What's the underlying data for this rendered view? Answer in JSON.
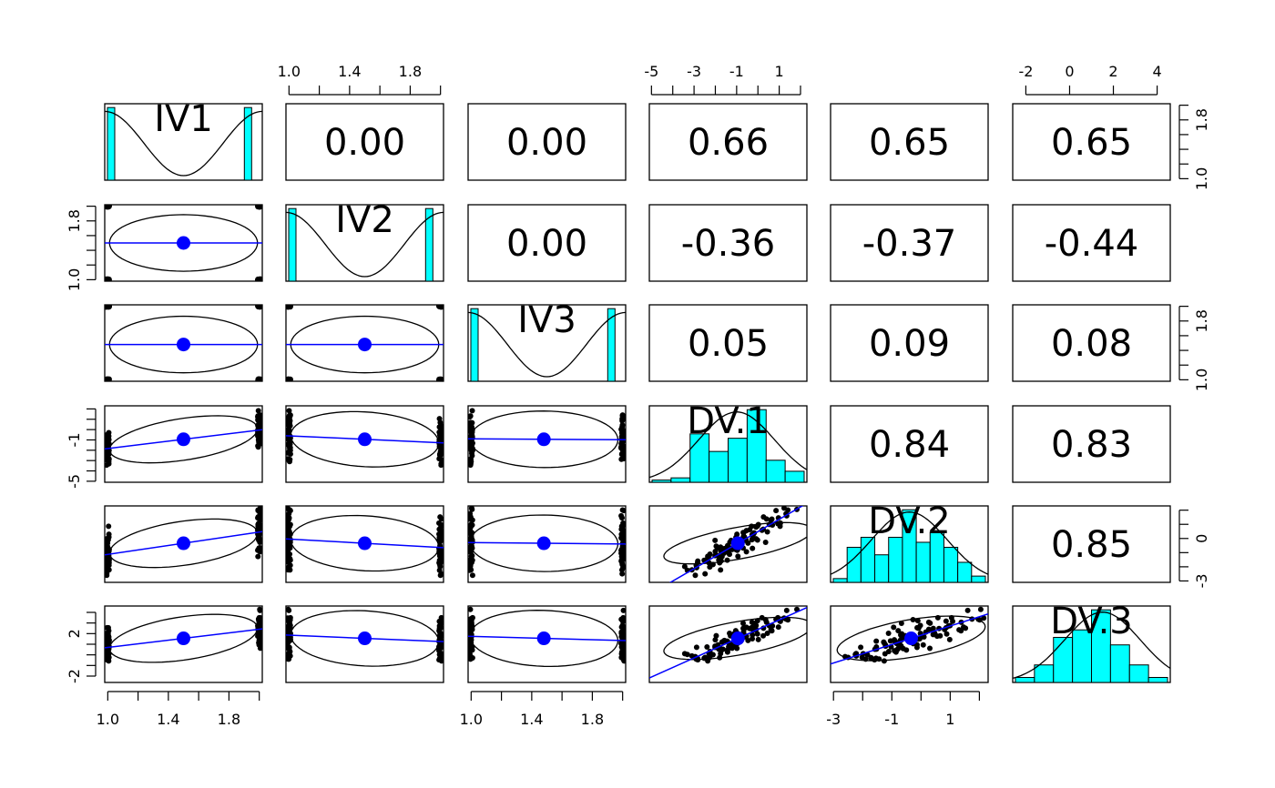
{
  "chart_data": {
    "type": "scatter_matrix",
    "variables": [
      "IV1",
      "IV2",
      "IV3",
      "DV.1",
      "DV.2",
      "DV.3"
    ],
    "correlations": [
      [
        "",
        "0.00",
        "0.00",
        "0.66",
        "0.65",
        "0.65"
      ],
      [
        "",
        "",
        "0.00",
        "-0.36",
        "-0.37",
        "-0.44"
      ],
      [
        "",
        "",
        "",
        "0.05",
        "0.09",
        "0.08"
      ],
      [
        "",
        "",
        "",
        "",
        "0.84",
        "0.83"
      ],
      [
        "",
        "",
        "",
        "",
        "",
        "0.85"
      ],
      [
        "",
        "",
        "",
        "",
        "",
        ""
      ]
    ],
    "ranges": [
      [
        0.98,
        2.02
      ],
      [
        0.98,
        2.02
      ],
      [
        0.98,
        2.02
      ],
      [
        -5.1,
        2.3
      ],
      [
        -3.1,
        2.3
      ],
      [
        -2.6,
        4.6
      ]
    ],
    "axes": {
      "top": [
        {
          "var": 1,
          "ticks": [
            1.0,
            1.2,
            1.4,
            1.6,
            1.8,
            2.0
          ],
          "labels": [
            "1.0",
            "",
            "1.4",
            "",
            "1.8",
            ""
          ]
        },
        {
          "var": 3,
          "ticks": [
            -5,
            -4,
            -3,
            -2,
            -1,
            0,
            1,
            2
          ],
          "labels": [
            "-5",
            "",
            "-3",
            "",
            "-1",
            "",
            "1",
            ""
          ]
        },
        {
          "var": 5,
          "ticks": [
            -2,
            0,
            2,
            4
          ],
          "labels": [
            "-2",
            "0",
            "2",
            "4"
          ]
        }
      ],
      "bottom": [
        {
          "var": 0,
          "ticks": [
            1.0,
            1.2,
            1.4,
            1.6,
            1.8,
            2.0
          ],
          "labels": [
            "1.0",
            "",
            "1.4",
            "",
            "1.8",
            ""
          ]
        },
        {
          "var": 2,
          "ticks": [
            1.0,
            1.2,
            1.4,
            1.6,
            1.8,
            2.0
          ],
          "labels": [
            "1.0",
            "",
            "1.4",
            "",
            "1.8",
            ""
          ]
        },
        {
          "var": 4,
          "ticks": [
            -3,
            -2,
            -1,
            0,
            1,
            2
          ],
          "labels": [
            "-3",
            "",
            "-1",
            "",
            "1",
            ""
          ]
        }
      ],
      "left": [
        {
          "var": 1,
          "ticks": [
            1.0,
            1.2,
            1.4,
            1.6,
            1.8,
            2.0
          ],
          "labels": [
            "1.0",
            "",
            "",
            "",
            "1.8",
            ""
          ]
        },
        {
          "var": 3,
          "ticks": [
            -5,
            -4,
            -3,
            -2,
            -1,
            0,
            1,
            2
          ],
          "labels": [
            "-5",
            "",
            "",
            "",
            "-1",
            "",
            "",
            ""
          ]
        },
        {
          "var": 5,
          "ticks": [
            -2,
            -1,
            0,
            1,
            2,
            3,
            4
          ],
          "labels": [
            "-2",
            "",
            "",
            "",
            "2",
            "",
            ""
          ]
        }
      ],
      "right": [
        {
          "var": 0,
          "ticks": [
            1.0,
            1.2,
            1.4,
            1.6,
            1.8,
            2.0
          ],
          "labels": [
            "1.0",
            "",
            "",
            "",
            "1.8",
            ""
          ]
        },
        {
          "var": 2,
          "ticks": [
            1.0,
            1.2,
            1.4,
            1.6,
            1.8,
            2.0
          ],
          "labels": [
            "1.0",
            "",
            "",
            "",
            "1.8",
            ""
          ]
        },
        {
          "var": 4,
          "ticks": [
            -3,
            -2,
            -1,
            0,
            1,
            2
          ],
          "labels": [
            "-3",
            "",
            "",
            "0",
            "",
            ""
          ]
        }
      ]
    },
    "histograms": {
      "IV1": [
        50,
        0,
        0,
        0,
        0,
        0,
        0,
        0,
        0,
        50
      ],
      "IV2": [
        50,
        0,
        0,
        0,
        0,
        0,
        0,
        0,
        0,
        50
      ],
      "IV3": [
        50,
        0,
        0,
        0,
        0,
        0,
        0,
        0,
        0,
        50
      ],
      "DV.1": [
        2,
        4,
        44,
        28,
        40,
        66,
        20,
        10
      ],
      "DV.2": [
        3,
        28,
        36,
        22,
        36,
        58,
        32,
        40,
        28,
        16,
        5
      ],
      "DV.3": [
        4,
        14,
        36,
        42,
        58,
        30,
        14,
        4
      ]
    },
    "means": {
      "IV1": 1.5,
      "IV2": 1.5,
      "IV3": 1.5,
      "DV.1": -1.0,
      "DV.2": -0.4,
      "DV.3": 1.5
    },
    "colors": {
      "histogram_fill": "#00FFFF",
      "points": "#000000",
      "mean_point": "#0000FF",
      "fit_line": "#0000FF",
      "ellipse": "#000000"
    }
  }
}
